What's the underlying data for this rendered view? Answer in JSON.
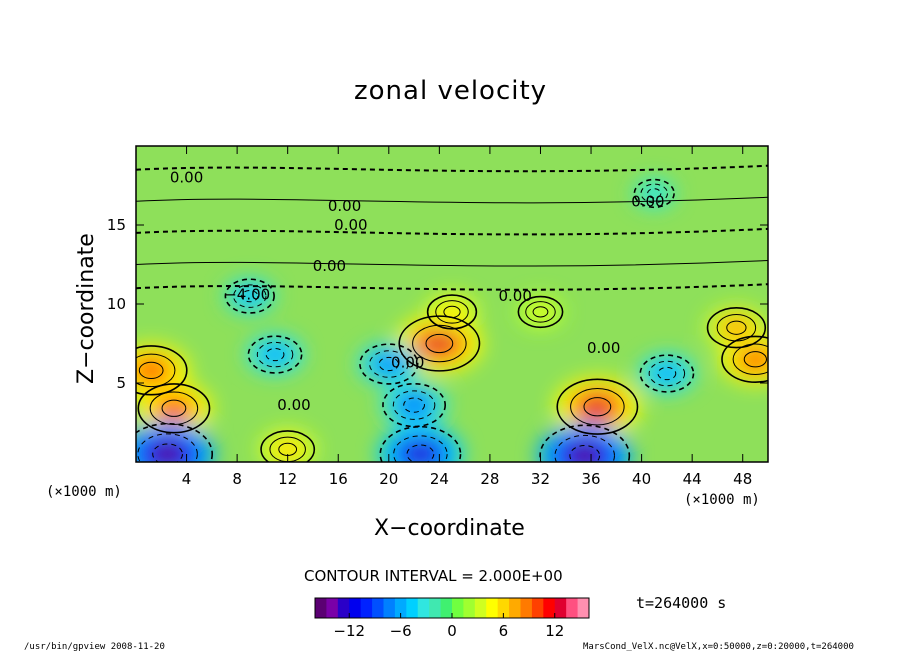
{
  "chart_data": {
    "type": "heatmap",
    "title": "zonal velocity",
    "xlabel": "X−coordinate",
    "ylabel": "Z−coordinate",
    "x_unit": "(×1000 m)",
    "y_unit": "(×1000 m)",
    "xlim": [
      0,
      50
    ],
    "ylim": [
      0,
      20
    ],
    "xticks": [
      4,
      8,
      12,
      16,
      20,
      24,
      28,
      32,
      36,
      40,
      44,
      48
    ],
    "yticks": [
      5,
      10,
      15
    ],
    "xtick_labels": [
      "4",
      "8",
      "12",
      "16",
      "20",
      "24",
      "28",
      "32",
      "36",
      "40",
      "44",
      "48"
    ],
    "ytick_labels": [
      "5",
      "10",
      "15"
    ],
    "contour_interval": "CONTOUR INTERVAL = 2.000E+00",
    "contour_labels": [
      {
        "x": 4,
        "z": 18,
        "text": "0.00"
      },
      {
        "x": 16.5,
        "z": 16.2,
        "text": "0.00"
      },
      {
        "x": 17,
        "z": 15,
        "text": "0.00"
      },
      {
        "x": 40.5,
        "z": 16.5,
        "text": "0.00"
      },
      {
        "x": 15.3,
        "z": 12.4,
        "text": "0.00"
      },
      {
        "x": 8.8,
        "z": 10.6,
        "text": "−4.00"
      },
      {
        "x": 30,
        "z": 10.5,
        "text": "0.00"
      },
      {
        "x": 37,
        "z": 7.2,
        "text": "0.00"
      },
      {
        "x": 21.5,
        "z": 6.3,
        "text": "0.00"
      },
      {
        "x": 12.5,
        "z": 3.6,
        "text": "0.00"
      }
    ],
    "extrema": [
      {
        "x": 24,
        "z": 7.5,
        "value": 12
      },
      {
        "x": 36.5,
        "z": 3.5,
        "value": 12
      },
      {
        "x": 3,
        "z": 3.4,
        "value": 10
      },
      {
        "x": 1.2,
        "z": 5.8,
        "value": 10
      },
      {
        "x": 49,
        "z": 6.5,
        "value": 9
      },
      {
        "x": 12,
        "z": 0.8,
        "value": 6
      },
      {
        "x": 22,
        "z": 3.6,
        "value": -8
      },
      {
        "x": 11,
        "z": 6.8,
        "value": -6
      },
      {
        "x": 42,
        "z": 5.6,
        "value": -6
      },
      {
        "x": 20,
        "z": 6.2,
        "value": -7
      },
      {
        "x": 2.5,
        "z": 0.5,
        "value": -14
      },
      {
        "x": 22.5,
        "z": 0.5,
        "value": -12
      },
      {
        "x": 35.5,
        "z": 0.4,
        "value": -14
      },
      {
        "x": 9,
        "z": 10.5,
        "value": -5
      },
      {
        "x": 41,
        "z": 17,
        "value": -3
      },
      {
        "x": 25,
        "z": 9.5,
        "value": 5
      },
      {
        "x": 32,
        "z": 9.5,
        "value": 4
      },
      {
        "x": 47.5,
        "z": 8.5,
        "value": 7
      }
    ],
    "colorbar": {
      "vmin": -16,
      "vmax": 16,
      "ticks": [
        -12,
        -6,
        0,
        6,
        12
      ],
      "tick_labels": [
        "−12",
        "−6",
        "0",
        "6",
        "12"
      ],
      "colors": [
        "#5b0073",
        "#7a00a8",
        "#2a00c8",
        "#0000ee",
        "#0022ff",
        "#0050ff",
        "#0080ff",
        "#00aaff",
        "#00d0ff",
        "#30e6e0",
        "#40e8b0",
        "#40f070",
        "#70ff40",
        "#a0ff30",
        "#d0ff20",
        "#ffff00",
        "#ffd800",
        "#ffaa00",
        "#ff7a00",
        "#ff4000",
        "#ff0000",
        "#e00030",
        "#ff5080",
        "#ff90b0"
      ]
    },
    "time": "t=264000 s"
  },
  "footer": {
    "left": "/usr/bin/gpview  2008-11-20",
    "right": "MarsCond_VelX.nc@VelX,x=0:50000,z=0:20000,t=264000"
  }
}
